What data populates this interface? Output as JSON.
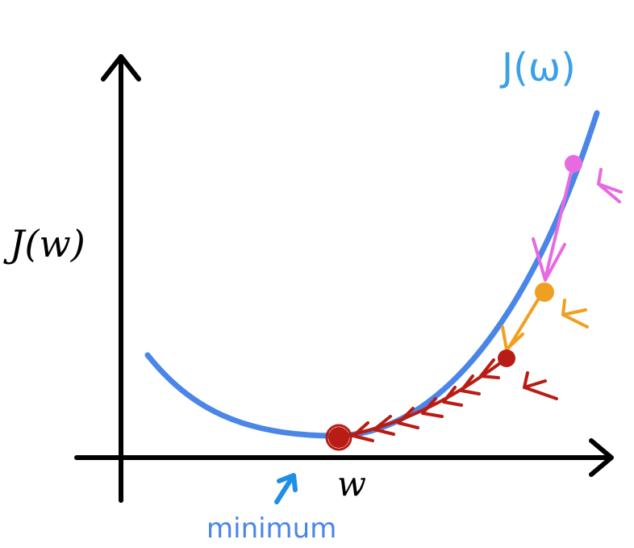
{
  "labels": {
    "y_axis": "J(w)",
    "x_axis": "w",
    "curve": "J(ω)",
    "minimum": "minimum"
  },
  "colors": {
    "axis": "#000000",
    "curve": "#4a86e8",
    "curve_label": "#3aa0e8",
    "minimum_label": "#4a86e8",
    "minimum_arrow": "#1e8fe6",
    "step_pink": "#e86ae0",
    "step_orange": "#f0a020",
    "step_red": "#b81c14"
  },
  "icons": {
    "y_axis_arrow": "arrow-up-icon",
    "x_axis_arrow": "arrow-right-icon",
    "minimum_pointer": "arrow-up-right-icon"
  }
}
